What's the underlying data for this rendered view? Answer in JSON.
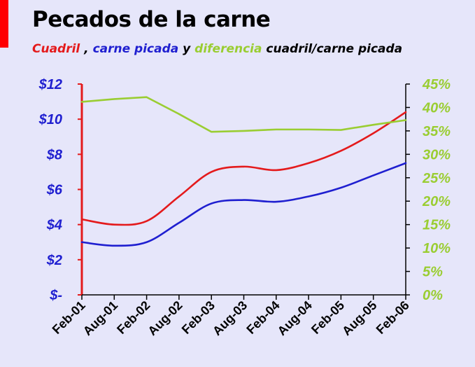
{
  "title": "Pecados de la carne",
  "subtitle": {
    "cuadril": "Cuadril",
    "comma": " , ",
    "carne_picada": "carne picada",
    "y": " y ",
    "diferencia": "diferencia",
    "ratio": " cuadril/carne picada"
  },
  "colors": {
    "background": "#E6E6FA",
    "accent": "#FF0000",
    "cuadril": "#E41A1C",
    "carne_picada": "#1F1FD0",
    "diferencia": "#9ACD32",
    "left_axis": "#E41A1C",
    "left_labels": "#1F1FD0",
    "right_labels": "#9ACD32"
  },
  "chart_data": {
    "type": "line",
    "title": "Pecados de la carne",
    "x": [
      "Feb-01",
      "Aug-01",
      "Feb-02",
      "Aug-02",
      "Feb-03",
      "Aug-03",
      "Feb-04",
      "Aug-04",
      "Feb-05",
      "Aug-05",
      "Feb-06"
    ],
    "left_axis": {
      "ylim": [
        0,
        12
      ],
      "ticks": [
        0,
        2,
        4,
        6,
        8,
        10,
        12
      ],
      "tick_labels": [
        "$-",
        "$2",
        "$4",
        "$6",
        "$8",
        "$10",
        "$12"
      ]
    },
    "right_axis": {
      "ylim": [
        0,
        45
      ],
      "ticks": [
        0,
        5,
        10,
        15,
        20,
        25,
        30,
        35,
        40,
        45
      ],
      "tick_labels": [
        "0%",
        "5%",
        "10%",
        "15%",
        "20%",
        "25%",
        "30%",
        "35%",
        "40%",
        "45%"
      ]
    },
    "series": [
      {
        "name": "Cuadril",
        "axis": "left",
        "values": [
          4.3,
          4.0,
          4.2,
          5.6,
          7.0,
          7.3,
          7.1,
          7.5,
          8.2,
          9.2,
          10.4
        ]
      },
      {
        "name": "carne picada",
        "axis": "left",
        "values": [
          3.0,
          2.8,
          3.0,
          4.1,
          5.2,
          5.4,
          5.3,
          5.6,
          6.1,
          6.8,
          7.5
        ]
      },
      {
        "name": "diferencia cuadril/carne picada",
        "axis": "right",
        "values": [
          41.2,
          41.8,
          42.2,
          38.6,
          34.8,
          35.0,
          35.3,
          35.3,
          35.2,
          36.3,
          37.3
        ]
      }
    ],
    "grid": false,
    "legend": "subtitle"
  }
}
